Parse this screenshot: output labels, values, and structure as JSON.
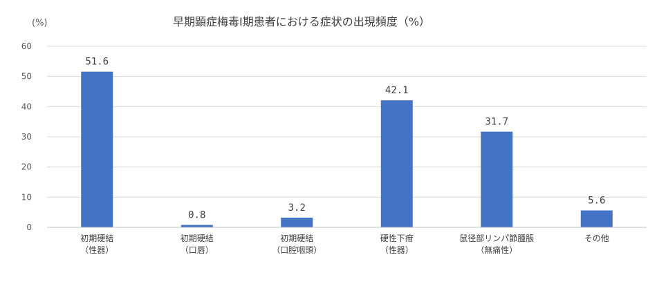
{
  "chart_data": {
    "type": "bar",
    "title": "早期顕症梅毒Ⅰ期患者における症状の出現頻度（%）",
    "ylabel": "(%)",
    "xlabel": "",
    "ylim": [
      0,
      60
    ],
    "yticks": [
      0,
      10,
      20,
      30,
      40,
      50,
      60
    ],
    "grid": true,
    "categories": [
      [
        "初期硬結",
        "（性器）"
      ],
      [
        "初期硬結",
        "（口唇）"
      ],
      [
        "初期硬結",
        "（口腔咽頭）"
      ],
      [
        "硬性下疳",
        "（性器）"
      ],
      [
        "鼠径部リンパ節腫脹",
        "（無痛性）"
      ],
      [
        "その他"
      ]
    ],
    "values": [
      51.6,
      0.8,
      3.2,
      42.1,
      31.7,
      5.6
    ],
    "value_labels": [
      "51.6",
      "0.8",
      "3.2",
      "42.1",
      "31.7",
      "5.6"
    ],
    "bar_color": "#4472C4",
    "grid_color": "#D9D9D9",
    "axis_color": "#BFBFBF"
  }
}
